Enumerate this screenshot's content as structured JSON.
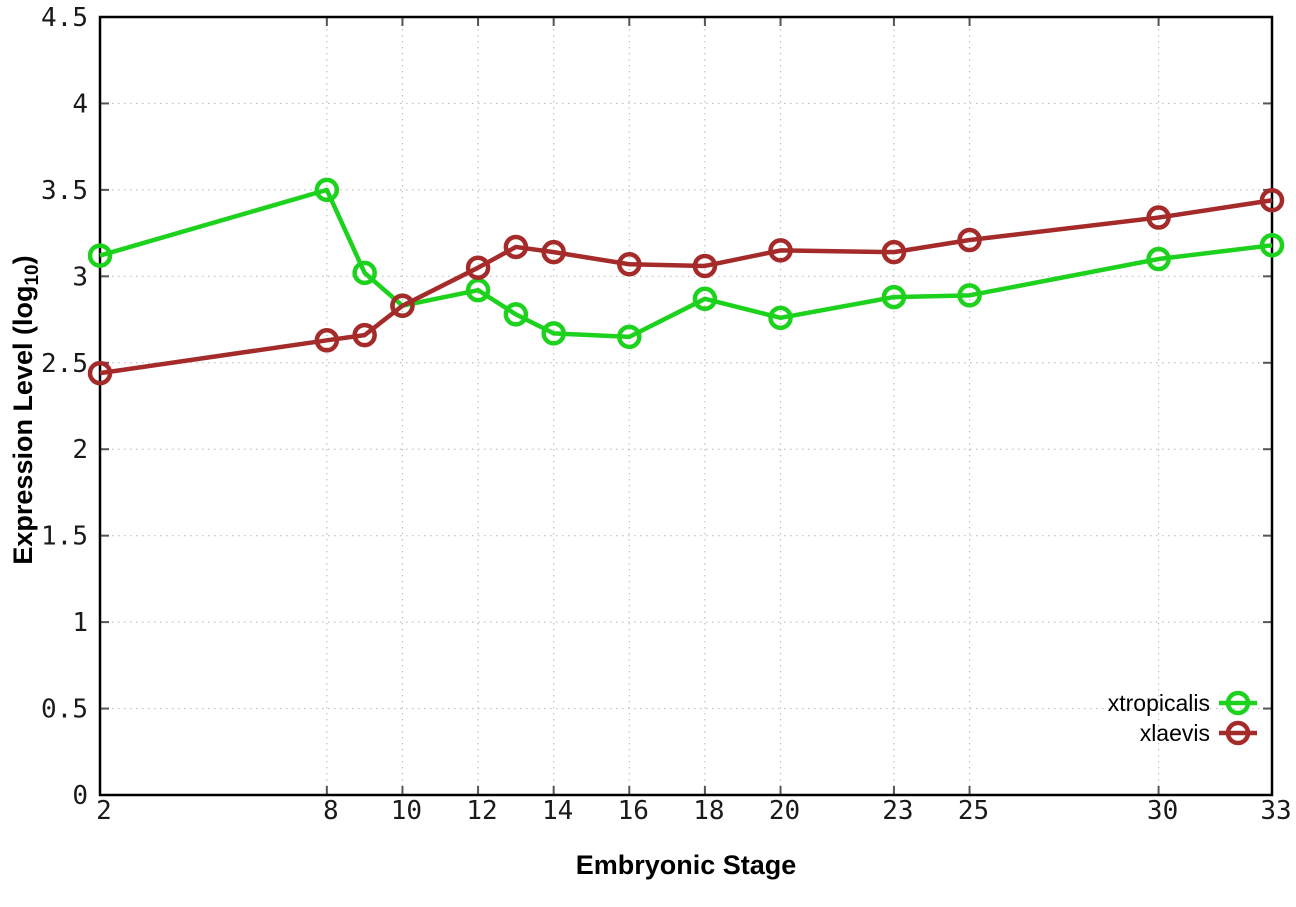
{
  "figure": {
    "xlabel": "Embryonic Stage",
    "ylabel_prefix": "Expression Level (log",
    "ylabel_sub": "10",
    "ylabel_suffix": ")"
  },
  "chart_data": {
    "type": "line",
    "title": "",
    "xlabel": "Embryonic Stage",
    "ylabel": "Expression Level (log10)",
    "x": [
      2,
      8,
      9,
      10,
      12,
      13,
      14,
      16,
      18,
      20,
      23,
      25,
      30,
      33
    ],
    "series": [
      {
        "name": "xtropicalis",
        "color": "#1dd21d",
        "marker": "open-circle",
        "values": [
          3.12,
          3.5,
          3.02,
          2.83,
          2.92,
          2.78,
          2.67,
          2.65,
          2.87,
          2.76,
          2.88,
          2.89,
          3.1,
          3.18
        ]
      },
      {
        "name": "xlaevis",
        "color": "#a52a2a",
        "marker": "open-circle",
        "values": [
          2.44,
          2.63,
          2.66,
          2.83,
          3.05,
          3.17,
          3.14,
          3.07,
          3.06,
          3.15,
          3.14,
          3.21,
          3.34,
          3.44
        ]
      }
    ],
    "xlim": [
      2,
      33
    ],
    "ylim": [
      0,
      4.5
    ],
    "xticks": [
      2,
      8,
      10,
      12,
      14,
      16,
      18,
      20,
      23,
      25,
      30,
      33
    ],
    "xtick_labels": [
      "2",
      "8",
      "10",
      "12",
      "14",
      "16",
      "18",
      "20",
      "23",
      "25",
      "30",
      "33"
    ],
    "yticks": [
      0,
      0.5,
      1,
      1.5,
      2,
      2.5,
      3,
      3.5,
      4,
      4.5
    ],
    "ytick_labels": [
      "0",
      "0.5",
      "1",
      "1.5",
      "2",
      "2.5",
      "3",
      "3.5",
      "4",
      "4.5"
    ],
    "grid": true,
    "grid_style": "dotted",
    "legend_position": "bottom-right",
    "legend": [
      "xtropicalis",
      "xlaevis"
    ]
  }
}
